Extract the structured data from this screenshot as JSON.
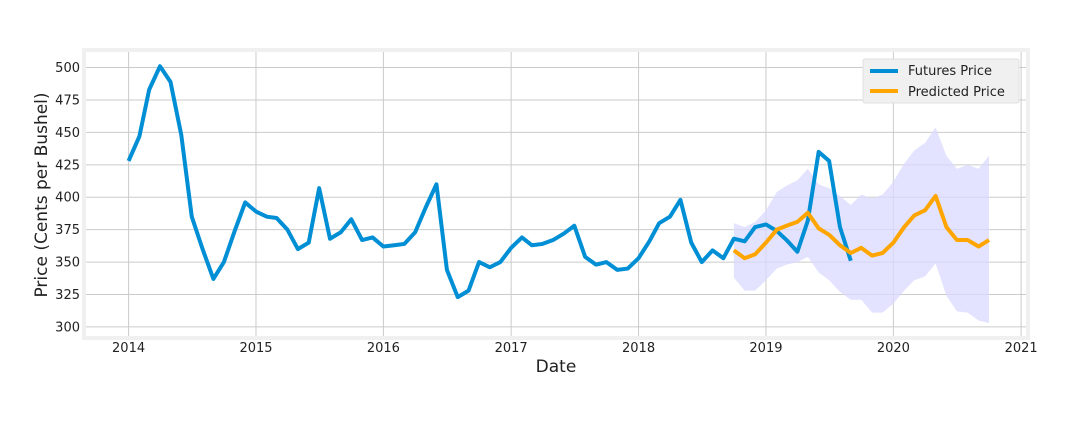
{
  "chart_data": {
    "type": "line",
    "title": "",
    "xlabel": "Date",
    "ylabel": "Price (Cents per Bushel)",
    "xlim": [
      "2013-09-01",
      "2021-01-15"
    ],
    "ylim": [
      293,
      512
    ],
    "x_ticks": [
      "2014",
      "2015",
      "2016",
      "2017",
      "2018",
      "2019",
      "2020",
      "2021"
    ],
    "y_ticks": [
      300,
      325,
      350,
      375,
      400,
      425,
      450,
      475,
      500
    ],
    "grid": true,
    "legend_position": "top-right",
    "colors": {
      "futures": "#008fd5",
      "predicted": "#ffa500",
      "band": "#d9d9ff",
      "grid": "#cbcbcb",
      "axes_bg": "#ffffff",
      "frame": "#f0f0f0"
    },
    "series": [
      {
        "name": "Futures Price",
        "color": "#008fd5",
        "points": [
          [
            "2014-01-01",
            428
          ],
          [
            "2014-02-01",
            447
          ],
          [
            "2014-03-01",
            483
          ],
          [
            "2014-04-01",
            501
          ],
          [
            "2014-05-01",
            489
          ],
          [
            "2014-06-01",
            448
          ],
          [
            "2014-07-01",
            385
          ],
          [
            "2014-08-01",
            360
          ],
          [
            "2014-09-01",
            337
          ],
          [
            "2014-10-01",
            350
          ],
          [
            "2014-11-01",
            374
          ],
          [
            "2014-12-01",
            396
          ],
          [
            "2015-01-01",
            389
          ],
          [
            "2015-02-01",
            385
          ],
          [
            "2015-03-01",
            384
          ],
          [
            "2015-04-01",
            375
          ],
          [
            "2015-05-01",
            360
          ],
          [
            "2015-06-01",
            365
          ],
          [
            "2015-07-01",
            407
          ],
          [
            "2015-08-01",
            368
          ],
          [
            "2015-09-01",
            373
          ],
          [
            "2015-10-01",
            383
          ],
          [
            "2015-11-01",
            367
          ],
          [
            "2015-12-01",
            369
          ],
          [
            "2016-01-01",
            362
          ],
          [
            "2016-02-01",
            363
          ],
          [
            "2016-03-01",
            364
          ],
          [
            "2016-04-01",
            373
          ],
          [
            "2016-05-01",
            392
          ],
          [
            "2016-06-01",
            410
          ],
          [
            "2016-07-01",
            344
          ],
          [
            "2016-08-01",
            323
          ],
          [
            "2016-09-01",
            328
          ],
          [
            "2016-10-01",
            350
          ],
          [
            "2016-11-01",
            346
          ],
          [
            "2016-12-01",
            350
          ],
          [
            "2017-01-01",
            361
          ],
          [
            "2017-02-01",
            369
          ],
          [
            "2017-03-01",
            363
          ],
          [
            "2017-04-01",
            364
          ],
          [
            "2017-05-01",
            367
          ],
          [
            "2017-06-01",
            372
          ],
          [
            "2017-07-01",
            378
          ],
          [
            "2017-08-01",
            354
          ],
          [
            "2017-09-01",
            348
          ],
          [
            "2017-10-01",
            350
          ],
          [
            "2017-11-01",
            344
          ],
          [
            "2017-12-01",
            345
          ],
          [
            "2018-01-01",
            353
          ],
          [
            "2018-02-01",
            366
          ],
          [
            "2018-03-01",
            380
          ],
          [
            "2018-04-01",
            385
          ],
          [
            "2018-05-01",
            398
          ],
          [
            "2018-06-01",
            365
          ],
          [
            "2018-07-01",
            350
          ],
          [
            "2018-08-01",
            359
          ],
          [
            "2018-09-01",
            353
          ],
          [
            "2018-10-01",
            368
          ],
          [
            "2018-11-01",
            366
          ],
          [
            "2018-12-01",
            377
          ],
          [
            "2019-01-01",
            379
          ],
          [
            "2019-02-01",
            374
          ],
          [
            "2019-03-01",
            367
          ],
          [
            "2019-04-01",
            358
          ],
          [
            "2019-05-01",
            382
          ],
          [
            "2019-06-01",
            435
          ],
          [
            "2019-07-01",
            428
          ],
          [
            "2019-08-01",
            377
          ],
          [
            "2019-09-01",
            351
          ]
        ]
      },
      {
        "name": "Predicted Price",
        "color": "#ffa500",
        "points": [
          [
            "2018-10-01",
            359
          ],
          [
            "2018-11-01",
            353
          ],
          [
            "2018-12-01",
            356
          ],
          [
            "2019-01-01",
            365
          ],
          [
            "2019-02-01",
            375
          ],
          [
            "2019-03-01",
            378
          ],
          [
            "2019-04-01",
            381
          ],
          [
            "2019-05-01",
            388
          ],
          [
            "2019-06-01",
            376
          ],
          [
            "2019-07-01",
            371
          ],
          [
            "2019-08-01",
            363
          ],
          [
            "2019-09-01",
            357
          ],
          [
            "2019-10-01",
            361
          ],
          [
            "2019-11-01",
            355
          ],
          [
            "2019-12-01",
            357
          ],
          [
            "2020-01-01",
            365
          ],
          [
            "2020-02-01",
            377
          ],
          [
            "2020-03-01",
            386
          ],
          [
            "2020-04-01",
            390
          ],
          [
            "2020-05-01",
            401
          ],
          [
            "2020-06-01",
            377
          ],
          [
            "2020-07-01",
            367
          ],
          [
            "2020-08-01",
            367
          ],
          [
            "2020-09-01",
            362
          ],
          [
            "2020-10-01",
            367
          ]
        ],
        "band_upper": [
          380,
          377,
          381,
          390,
          404,
          409,
          413,
          422,
          410,
          407,
          401,
          394,
          402,
          399,
          402,
          412,
          426,
          436,
          442,
          454,
          432,
          422,
          425,
          422,
          432
        ],
        "band_lower": [
          338,
          328,
          328,
          336,
          345,
          348,
          350,
          354,
          342,
          336,
          327,
          321,
          321,
          311,
          311,
          318,
          328,
          336,
          339,
          349,
          324,
          312,
          311,
          305,
          303
        ]
      }
    ]
  }
}
